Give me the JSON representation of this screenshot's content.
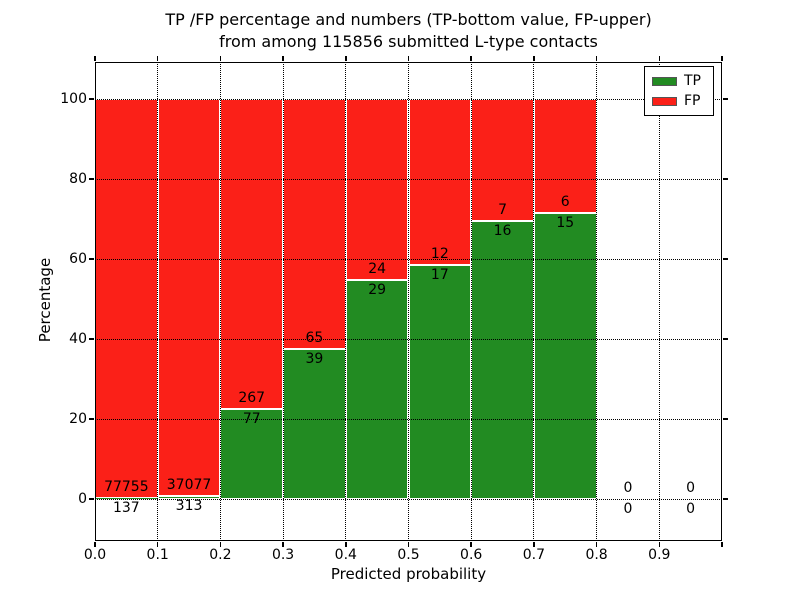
{
  "colors": {
    "tp": "#228b22",
    "fp": "#fb2018",
    "grid": "#000000",
    "frame": "#000000",
    "text": "#000000",
    "background": "#ffffff",
    "bar_edge": "#ffffff",
    "legend_bg": "#ffffff"
  },
  "chart_data": {
    "type": "bar",
    "stacked": true,
    "normalized_to": 100,
    "title_lines": [
      "TP /FP percentage and numbers (TP-bottom value, FP-upper)",
      "from among 115856 submitted L-type contacts"
    ],
    "title": "TP /FP percentage and numbers (TP-bottom value, FP-upper)\nfrom among 115856 submitted L-type contacts",
    "total_submitted": 115856,
    "xlabel": "Predicted probability",
    "ylabel": "Percentage",
    "xlim": [
      0.0,
      1.0
    ],
    "ylim": [
      -10.5,
      109.3
    ],
    "grid": "dotted",
    "x_tick_labels": [
      "0.0",
      "0.1",
      "0.2",
      "0.3",
      "0.4",
      "0.5",
      "0.6",
      "0.7",
      "0.8",
      "0.9"
    ],
    "y_tick_values": [
      0,
      20,
      40,
      60,
      80,
      100
    ],
    "y_tick_labels": [
      "0",
      "20",
      "40",
      "60",
      "80",
      "100"
    ],
    "legend_position": "upper right",
    "legend_entries": [
      {
        "label": "TP",
        "color_key": "tp"
      },
      {
        "label": "FP",
        "color_key": "fp"
      }
    ],
    "bins": [
      {
        "range": "0.0-0.1",
        "tp": 137,
        "fp": 77755,
        "tp_pct": 0.18,
        "fp_pct": 99.82
      },
      {
        "range": "0.1-0.2",
        "tp": 313,
        "fp": 37077,
        "tp_pct": 0.84,
        "fp_pct": 99.16
      },
      {
        "range": "0.2-0.3",
        "tp": 77,
        "fp": 267,
        "tp_pct": 22.38,
        "fp_pct": 77.62
      },
      {
        "range": "0.3-0.4",
        "tp": 39,
        "fp": 65,
        "tp_pct": 37.5,
        "fp_pct": 62.5
      },
      {
        "range": "0.4-0.5",
        "tp": 29,
        "fp": 24,
        "tp_pct": 54.72,
        "fp_pct": 45.28
      },
      {
        "range": "0.5-0.6",
        "tp": 17,
        "fp": 12,
        "tp_pct": 58.62,
        "fp_pct": 41.38
      },
      {
        "range": "0.6-0.7",
        "tp": 16,
        "fp": 7,
        "tp_pct": 69.57,
        "fp_pct": 30.43
      },
      {
        "range": "0.7-0.8",
        "tp": 15,
        "fp": 6,
        "tp_pct": 71.43,
        "fp_pct": 28.57
      },
      {
        "range": "0.8-0.9",
        "tp": 0,
        "fp": 0,
        "tp_pct": 0,
        "fp_pct": 0
      },
      {
        "range": "0.9-1.0",
        "tp": 0,
        "fp": 0,
        "tp_pct": 0,
        "fp_pct": 0
      }
    ]
  }
}
